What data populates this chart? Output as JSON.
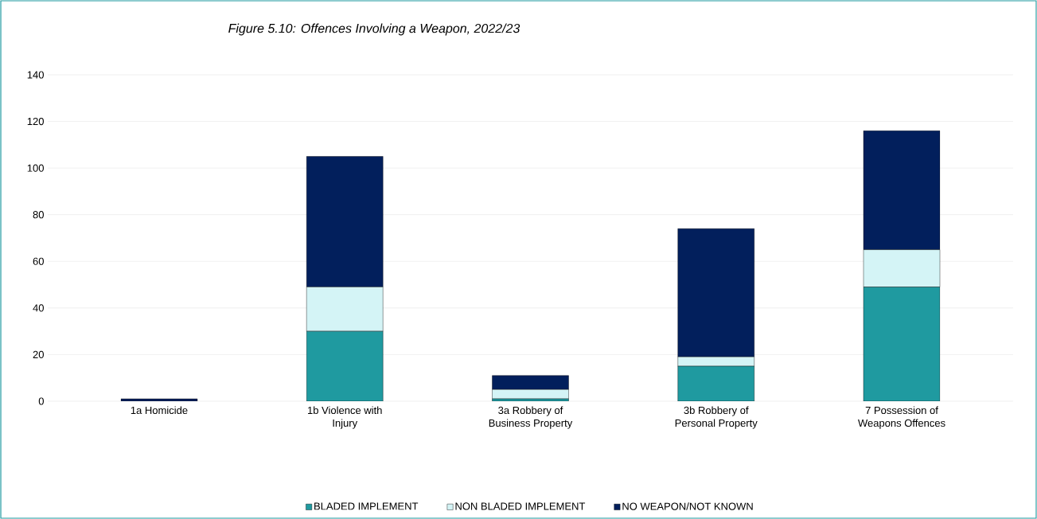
{
  "chart_data": {
    "type": "bar",
    "stacked": true,
    "title": "*Figure 5.10: Offences Involving a Weapon, 2022/23*",
    "categories": [
      "1a Homicide",
      "1b Violence with Injury",
      "3a Robbery of Business Property",
      "3b Robbery of Personal Property",
      "7 Possession of Weapons Offences"
    ],
    "series": [
      {
        "name": "BLADED IMPLEMENT",
        "color": "#1f9aa0",
        "values": [
          0,
          30,
          1,
          15,
          49
        ]
      },
      {
        "name": "NON BLADED IMPLEMENT",
        "color": "#d4f4f6",
        "values": [
          0,
          19,
          4,
          4,
          16
        ]
      },
      {
        "name": "NO WEAPON/NOT KNOWN",
        "color": "#021f5c",
        "values": [
          1,
          56,
          6,
          55,
          51
        ]
      }
    ],
    "ylim": [
      0,
      140
    ],
    "yticks": [
      0,
      20,
      40,
      60,
      80,
      100,
      120,
      140
    ],
    "grid": "y",
    "legend": "bottom"
  }
}
